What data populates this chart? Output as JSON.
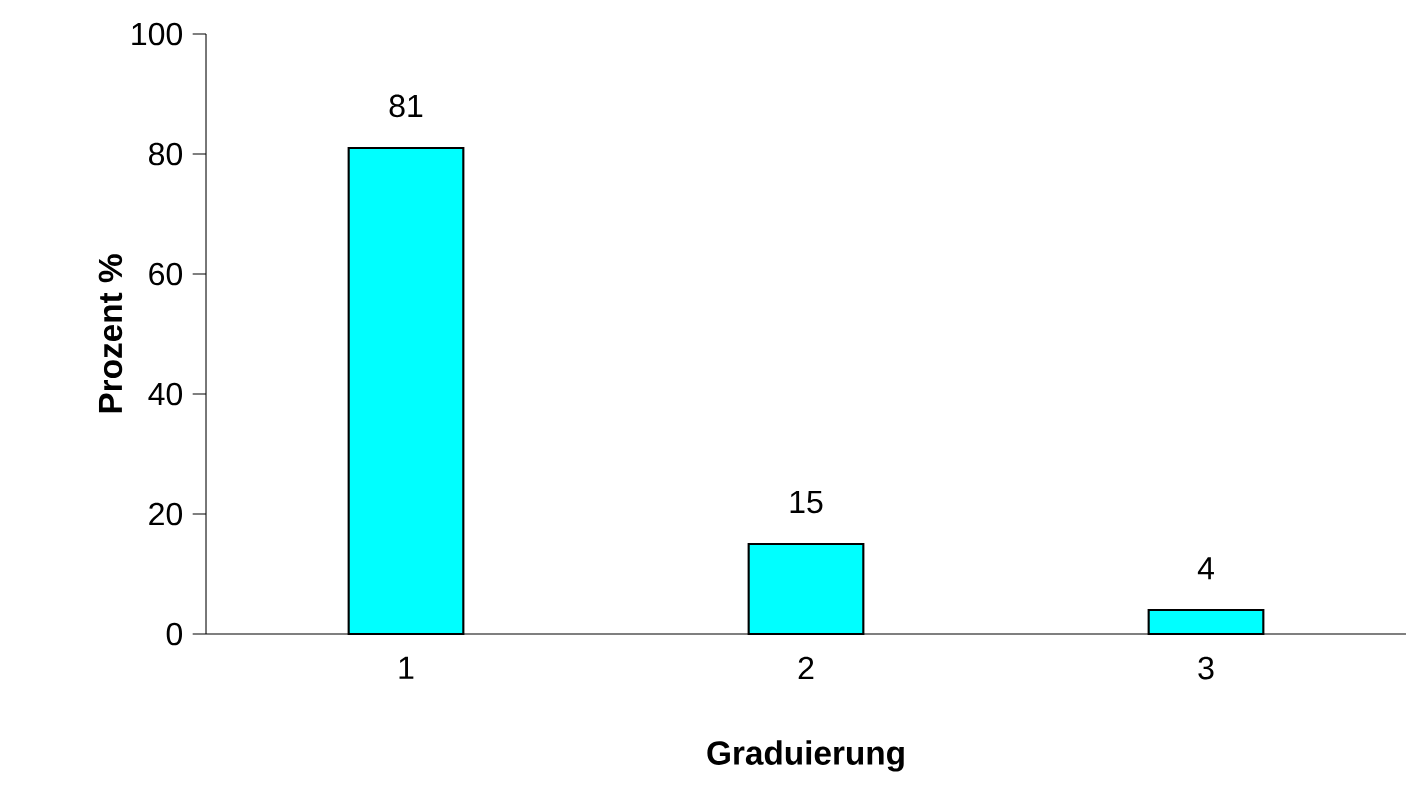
{
  "chart_data": {
    "type": "bar",
    "xlabel": "Graduierung",
    "ylabel": "Prozent %",
    "categories": [
      "1",
      "2",
      "3"
    ],
    "values": [
      81,
      15,
      4
    ],
    "color": "#00ffff",
    "ylim": [
      0,
      100
    ],
    "yticks": [
      0,
      20,
      40,
      60,
      80,
      100
    ],
    "data_labels": true,
    "grid": false
  }
}
